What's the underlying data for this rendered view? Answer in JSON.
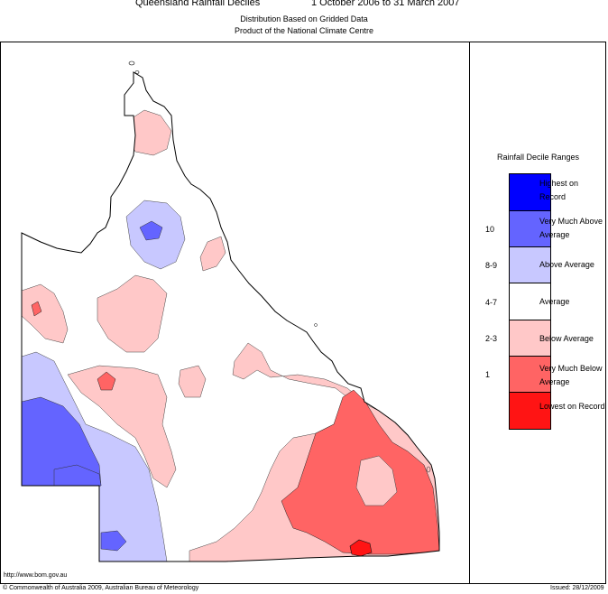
{
  "header": {
    "title": "Queensland Rainfall Deciles",
    "period": "1 October 2006 to 31 March 2007",
    "subtitle1": "Distribution Based on Gridded Data",
    "subtitle2": "Product of the National Climate Centre"
  },
  "legend": {
    "title": "Rainfall Decile Ranges",
    "classes": [
      {
        "decile": "",
        "label": "Highest on Record",
        "color": "#0000ff"
      },
      {
        "decile": "10",
        "label": "Very Much Above Average",
        "color": "#6464ff"
      },
      {
        "decile": "8-9",
        "label": "Above Average",
        "color": "#c8c8ff"
      },
      {
        "decile": "4-7",
        "label": "Average",
        "color": "#ffffff"
      },
      {
        "decile": "2-3",
        "label": "Below Average",
        "color": "#ffc8c8"
      },
      {
        "decile": "1",
        "label": "Very Much Below Average",
        "color": "#ff6464"
      },
      {
        "decile": "",
        "label": "Lowest on Record",
        "color": "#ff1414"
      }
    ]
  },
  "footer": {
    "url": "http://www.bom.gov.au",
    "copyright": "© Commonwealth of Australia 2009, Australian Bureau of Meteorology",
    "issued": "Issued: 28/12/2009"
  }
}
